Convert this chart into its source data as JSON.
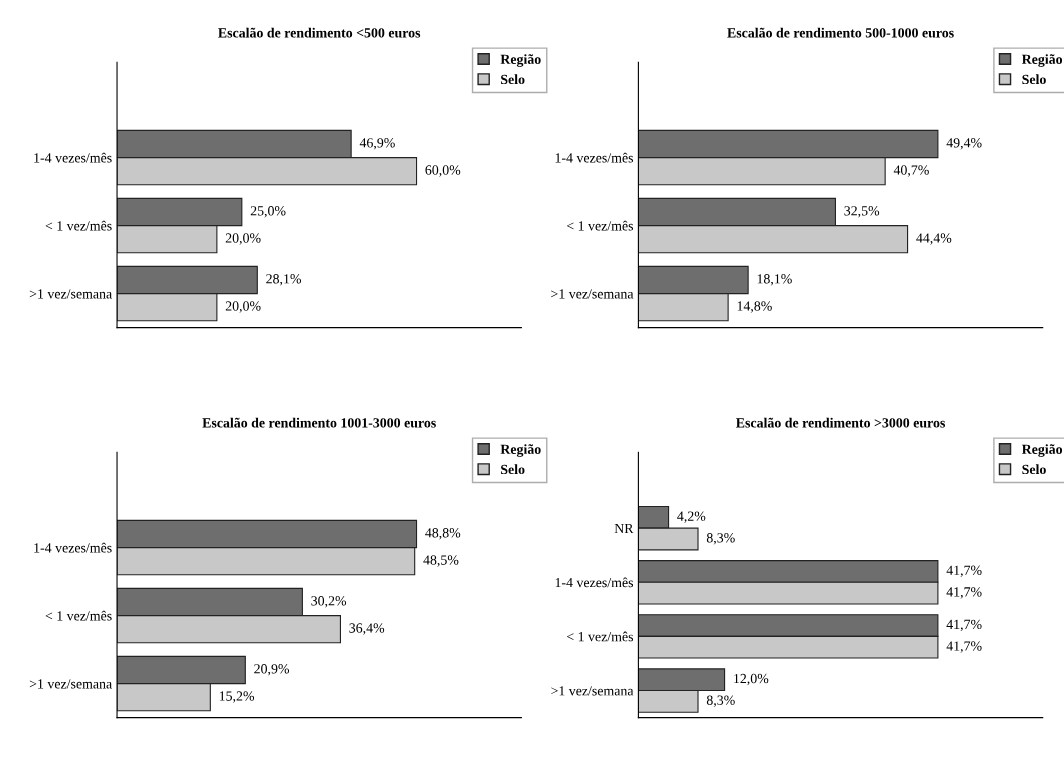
{
  "chart_data": [
    {
      "type": "bar",
      "orientation": "horizontal",
      "title": "Escalão de rendimento <500 euros",
      "categories": [
        "1-4 vezes/mês",
        "< 1 vez/mês",
        ">1 vez/semana"
      ],
      "legend": "top right",
      "series": [
        {
          "name": "Região",
          "color": "#6e6e6e",
          "values": [
            46.9,
            25.0,
            28.1
          ],
          "value_labels": [
            "46,9%",
            "25,0%",
            "28,1%"
          ]
        },
        {
          "name": "Selo",
          "color": "#c8c8c8",
          "values": [
            60.0,
            20.0,
            20.0
          ],
          "value_labels": [
            "60,0%",
            "20,0%",
            "20,0%"
          ]
        }
      ]
    },
    {
      "type": "bar",
      "orientation": "horizontal",
      "title": "Escalão de rendimento 500-1000 euros",
      "categories": [
        "1-4 vezes/mês",
        "< 1 vez/mês",
        ">1 vez/semana"
      ],
      "legend": "top right",
      "series": [
        {
          "name": "Região",
          "color": "#6e6e6e",
          "values": [
            49.4,
            32.5,
            18.1
          ],
          "value_labels": [
            "49,4%",
            "32,5%",
            "18,1%"
          ]
        },
        {
          "name": "Selo",
          "color": "#c8c8c8",
          "values": [
            40.7,
            44.4,
            14.8
          ],
          "value_labels": [
            "40,7%",
            "44,4%",
            "14,8%"
          ]
        }
      ]
    },
    {
      "type": "bar",
      "orientation": "horizontal",
      "title": "Escalão de rendimento 1001-3000 euros",
      "categories": [
        "1-4 vezes/mês",
        "< 1 vez/mês",
        ">1 vez/semana"
      ],
      "legend": "top right",
      "series": [
        {
          "name": "Região",
          "color": "#6e6e6e",
          "values": [
            48.8,
            30.2,
            20.9
          ],
          "value_labels": [
            "48,8%",
            "30,2%",
            "20,9%"
          ]
        },
        {
          "name": "Selo",
          "color": "#c8c8c8",
          "values": [
            48.5,
            36.4,
            15.2
          ],
          "value_labels": [
            "48,5%",
            "36,4%",
            "15,2%"
          ]
        }
      ]
    },
    {
      "type": "bar",
      "orientation": "horizontal",
      "title": "Escalão de rendimento >3000 euros",
      "categories": [
        "NR",
        "1-4 vezes/mês",
        "< 1 vez/mês",
        ">1 vez/semana"
      ],
      "legend": "top right",
      "series": [
        {
          "name": "Região",
          "color": "#6e6e6e",
          "values": [
            4.2,
            41.7,
            41.7,
            12.0
          ],
          "value_labels": [
            "4,2%",
            "41,7%",
            "41,7%",
            "12,0%"
          ]
        },
        {
          "name": "Selo",
          "color": "#c8c8c8",
          "values": [
            8.3,
            41.7,
            41.7,
            8.3
          ],
          "value_labels": [
            "8,3%",
            "41,7%",
            "41,7%",
            "8,3%"
          ]
        }
      ]
    }
  ]
}
